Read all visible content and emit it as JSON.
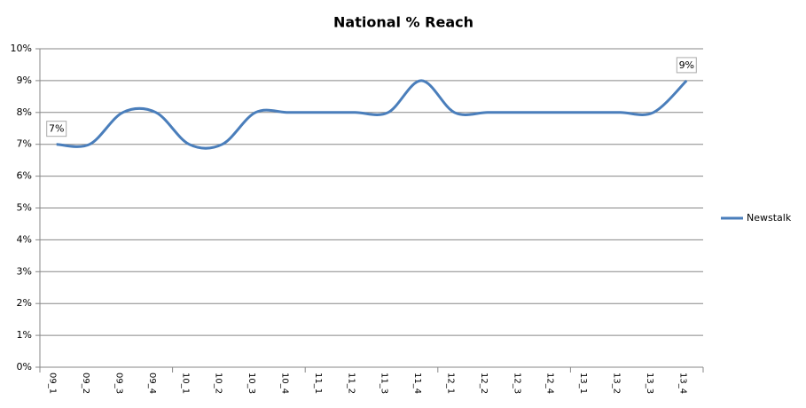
{
  "chart_data": {
    "type": "line",
    "title": "National % Reach",
    "categories": [
      "09_1",
      "09_2",
      "09_3",
      "09_4",
      "10_1",
      "10_2",
      "10_3",
      "10_4",
      "11_1",
      "11_2",
      "11_3",
      "11_4",
      "12_1",
      "12_2",
      "12_3",
      "12_4",
      "13_1",
      "13_2",
      "13_3",
      "13_4"
    ],
    "series": [
      {
        "name": "Newstalk",
        "color": "#4a7ebb",
        "values": [
          7,
          7,
          8,
          8,
          7,
          7,
          8,
          8,
          8,
          8,
          8,
          9,
          8,
          8,
          8,
          8,
          8,
          8,
          8,
          9
        ],
        "value_labels": [
          "7%",
          null,
          null,
          null,
          null,
          null,
          null,
          null,
          null,
          null,
          null,
          null,
          null,
          null,
          null,
          null,
          null,
          null,
          null,
          "9%"
        ]
      }
    ],
    "ylim": [
      0,
      10
    ],
    "yticks": [
      {
        "value": 0,
        "label": "0%"
      },
      {
        "value": 1,
        "label": "1%"
      },
      {
        "value": 2,
        "label": "2%"
      },
      {
        "value": 3,
        "label": "3%"
      },
      {
        "value": 4,
        "label": "4%"
      },
      {
        "value": 5,
        "label": "5%"
      },
      {
        "value": 6,
        "label": "6%"
      },
      {
        "value": 7,
        "label": "7%"
      },
      {
        "value": 8,
        "label": "8%"
      },
      {
        "value": 9,
        "label": "9%"
      },
      {
        "value": 10,
        "label": "10%"
      }
    ],
    "grid": true,
    "smooth": true,
    "legend": "right"
  }
}
